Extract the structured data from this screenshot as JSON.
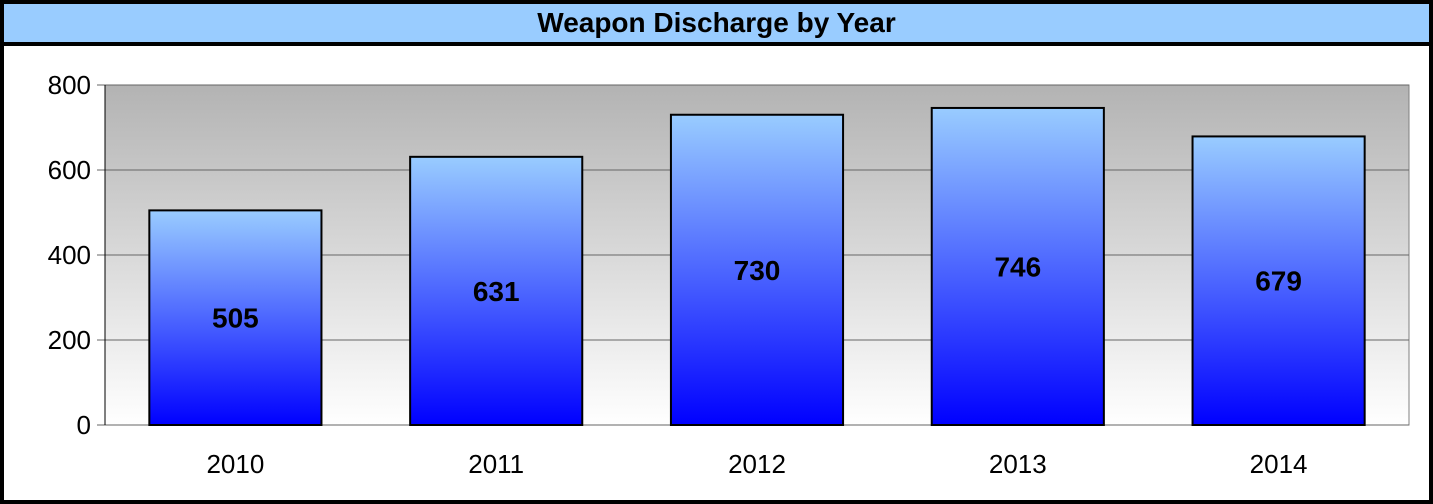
{
  "chart_data": {
    "type": "bar",
    "title": "Weapon Discharge by Year",
    "categories": [
      "2010",
      "2011",
      "2012",
      "2013",
      "2014"
    ],
    "values": [
      505,
      631,
      730,
      746,
      679
    ],
    "data_labels": [
      "505",
      "631",
      "730",
      "746",
      "679"
    ],
    "ylim": [
      0,
      800
    ],
    "yticks": [
      0,
      200,
      400,
      600,
      800
    ],
    "ytick_labels": [
      "0",
      "200",
      "400",
      "600",
      "800"
    ],
    "grid": true,
    "legend": "none",
    "xlabel": "",
    "ylabel": "",
    "colors": {
      "title_bg": "#99ccff",
      "bar_top": "#99ccff",
      "bar_bottom": "#0000ff",
      "plot_bg_top": "#b3b3b3",
      "plot_bg_bottom": "#ffffff",
      "gridline": "#666666"
    }
  }
}
